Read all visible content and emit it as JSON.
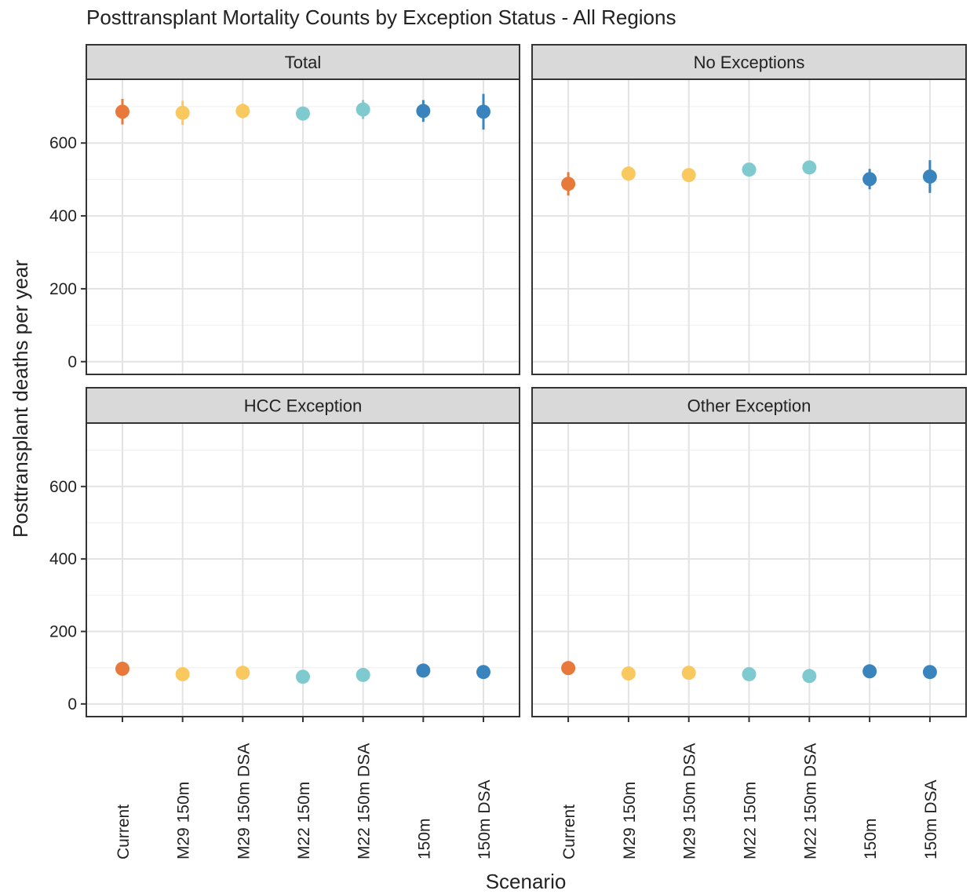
{
  "title": "Posttransplant Mortality Counts by Exception Status - All Regions",
  "xlabel": "Scenario",
  "ylabel": "Posttransplant deaths per year",
  "chart_data": [
    {
      "type": "scatter",
      "title": "Total",
      "categories": [
        "Current",
        "M29 150m",
        "M29 150m DSA",
        "M22 150m",
        "M22 150m DSA",
        "150m",
        "150m DSA"
      ],
      "values": [
        686,
        683,
        688,
        681,
        692,
        688,
        686
      ],
      "errors": [
        35,
        33,
        20,
        15,
        26,
        30,
        49
      ],
      "colors": [
        "#e8793a",
        "#f9c85f",
        "#f9c85f",
        "#7fcacf",
        "#7fcacf",
        "#3a84bd",
        "#3a84bd"
      ],
      "ylim": [
        -35,
        775
      ],
      "yticks": [
        0,
        200,
        400,
        600
      ],
      "minor_yticks": [
        100,
        300,
        500,
        700
      ],
      "grid": true
    },
    {
      "type": "scatter",
      "title": "No Exceptions",
      "categories": [
        "Current",
        "M29 150m",
        "M29 150m DSA",
        "M22 150m",
        "M22 150m DSA",
        "150m",
        "150m DSA"
      ],
      "values": [
        488,
        516,
        512,
        527,
        533,
        501,
        508
      ],
      "errors": [
        32,
        20,
        15,
        15,
        15,
        28,
        45
      ],
      "colors": [
        "#e8793a",
        "#f9c85f",
        "#f9c85f",
        "#7fcacf",
        "#7fcacf",
        "#3a84bd",
        "#3a84bd"
      ],
      "ylim": [
        -35,
        775
      ],
      "yticks": [
        0,
        200,
        400,
        600
      ],
      "minor_yticks": [
        100,
        300,
        500,
        700
      ],
      "grid": true
    },
    {
      "type": "scatter",
      "title": "HCC Exception",
      "categories": [
        "Current",
        "M29 150m",
        "M29 150m DSA",
        "M22 150m",
        "M22 150m DSA",
        "150m",
        "150m DSA"
      ],
      "values": [
        97,
        82,
        86,
        75,
        80,
        92,
        88
      ],
      "errors": [
        8,
        8,
        8,
        8,
        8,
        8,
        8
      ],
      "colors": [
        "#e8793a",
        "#f9c85f",
        "#f9c85f",
        "#7fcacf",
        "#7fcacf",
        "#3a84bd",
        "#3a84bd"
      ],
      "ylim": [
        -35,
        775
      ],
      "yticks": [
        0,
        200,
        400,
        600
      ],
      "minor_yticks": [
        100,
        300,
        500,
        700
      ],
      "grid": true
    },
    {
      "type": "scatter",
      "title": "Other Exception",
      "categories": [
        "Current",
        "M29 150m",
        "M29 150m DSA",
        "M22 150m",
        "M22 150m DSA",
        "150m",
        "150m DSA"
      ],
      "values": [
        99,
        84,
        86,
        82,
        77,
        90,
        88
      ],
      "errors": [
        8,
        8,
        8,
        8,
        8,
        8,
        8
      ],
      "colors": [
        "#e8793a",
        "#f9c85f",
        "#f9c85f",
        "#7fcacf",
        "#7fcacf",
        "#3a84bd",
        "#3a84bd"
      ],
      "ylim": [
        -35,
        775
      ],
      "yticks": [
        0,
        200,
        400,
        600
      ],
      "minor_yticks": [
        100,
        300,
        500,
        700
      ],
      "grid": true
    }
  ]
}
